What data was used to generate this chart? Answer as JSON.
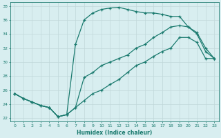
{
  "xlabel": "Humidex (Indice chaleur)",
  "bg_color": "#d8eef0",
  "grid_color": "#c8dfe1",
  "line_color": "#1a7a6e",
  "xlim": [
    -0.5,
    23.5
  ],
  "ylim": [
    21.5,
    38.5
  ],
  "xticks": [
    0,
    1,
    2,
    3,
    4,
    5,
    6,
    7,
    8,
    9,
    10,
    11,
    12,
    13,
    14,
    15,
    16,
    17,
    18,
    19,
    20,
    21,
    22,
    23
  ],
  "yticks": [
    22,
    24,
    26,
    28,
    30,
    32,
    34,
    36,
    38
  ],
  "line1_x": [
    0,
    1,
    2,
    3,
    4,
    5,
    6,
    7,
    8,
    9,
    10,
    11,
    12,
    13,
    14,
    15,
    16,
    17,
    18,
    19,
    20,
    21,
    22,
    23
  ],
  "line1_y": [
    25.5,
    24.8,
    24.3,
    23.8,
    23.5,
    22.2,
    22.5,
    32.5,
    36.0,
    37.0,
    37.5,
    37.7,
    37.8,
    37.5,
    37.2,
    37.0,
    37.0,
    36.8,
    36.5,
    36.5,
    35.0,
    34.0,
    31.5,
    30.5
  ],
  "line2_x": [
    0,
    1,
    2,
    3,
    4,
    5,
    6,
    7,
    8,
    9,
    10,
    11,
    12,
    13,
    14,
    15,
    16,
    17,
    18,
    19,
    20,
    21,
    22,
    23
  ],
  "line2_y": [
    25.5,
    24.8,
    24.3,
    23.8,
    23.5,
    22.2,
    22.5,
    23.5,
    27.8,
    28.5,
    29.5,
    30.0,
    30.5,
    31.0,
    32.0,
    32.5,
    33.5,
    34.2,
    35.0,
    35.2,
    35.0,
    34.2,
    32.0,
    30.5
  ],
  "line3_x": [
    0,
    1,
    2,
    3,
    4,
    5,
    6,
    7,
    8,
    9,
    10,
    11,
    12,
    13,
    14,
    15,
    16,
    17,
    18,
    19,
    20,
    21,
    22,
    23
  ],
  "line3_y": [
    25.5,
    24.8,
    24.3,
    23.8,
    23.5,
    22.2,
    22.5,
    23.5,
    24.5,
    25.5,
    26.0,
    26.8,
    27.5,
    28.5,
    29.5,
    30.0,
    30.8,
    31.5,
    32.0,
    33.5,
    33.5,
    32.8,
    30.5,
    30.5
  ]
}
